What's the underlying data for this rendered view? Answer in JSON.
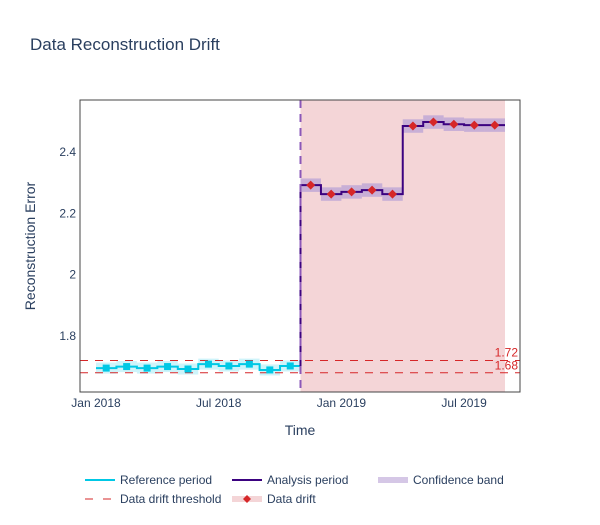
{
  "chart_data": {
    "type": "line",
    "title": "Data Reconstruction Drift",
    "xlabel": "Time",
    "ylabel": "Reconstruction Error",
    "x_ticks": [
      "Jan 2018",
      "Jul 2018",
      "Jan 2019",
      "Jul 2019"
    ],
    "y_ticks": [
      "1.8",
      "2",
      "2.2",
      "2.4"
    ],
    "y_tick_values": [
      1.8,
      2.0,
      2.2,
      2.4
    ],
    "ylim": [
      1.617,
      2.57
    ],
    "xlim": [
      "2017-12",
      "2019-10"
    ],
    "grid": false,
    "legend_position": "bottom",
    "colors": {
      "reference": "#00c8e5",
      "analysis": "#3b0280",
      "confidence_band": "#b9a2d6",
      "reference_band": "#a6ebf5",
      "threshold": "#d62728",
      "drift_marker": "#d62728",
      "drift_region": "#f4d5d7",
      "divider": "#8b58b8"
    },
    "series": [
      {
        "name": "Reference period",
        "x": [
          "2018-01",
          "2018-02",
          "2018-03",
          "2018-04",
          "2018-05",
          "2018-06",
          "2018-07",
          "2018-08",
          "2018-09",
          "2018-10"
        ],
        "values": [
          1.695,
          1.7,
          1.695,
          1.7,
          1.692,
          1.708,
          1.702,
          1.708,
          1.689,
          1.702
        ],
        "band": 0.018
      },
      {
        "name": "Analysis period",
        "x": [
          "2018-11",
          "2018-12",
          "2019-01",
          "2019-02",
          "2019-03",
          "2019-04",
          "2019-05",
          "2019-06",
          "2019-07",
          "2019-08"
        ],
        "values": [
          2.292,
          2.263,
          2.27,
          2.276,
          2.263,
          2.485,
          2.498,
          2.491,
          2.488,
          2.488
        ],
        "band": 0.022,
        "drift": [
          true,
          true,
          true,
          true,
          true,
          true,
          true,
          true,
          true,
          true
        ]
      }
    ],
    "thresholds": [
      {
        "value": 1.72,
        "label": "1.72"
      },
      {
        "value": 1.68,
        "label": "1.68"
      }
    ],
    "legend": [
      {
        "label": "Reference period",
        "kind": "line-reference"
      },
      {
        "label": "Analysis period",
        "kind": "line-analysis"
      },
      {
        "label": "Confidence band",
        "kind": "band"
      },
      {
        "label": "Data drift threshold",
        "kind": "dashed"
      },
      {
        "label": "Data drift",
        "kind": "drift"
      }
    ]
  }
}
